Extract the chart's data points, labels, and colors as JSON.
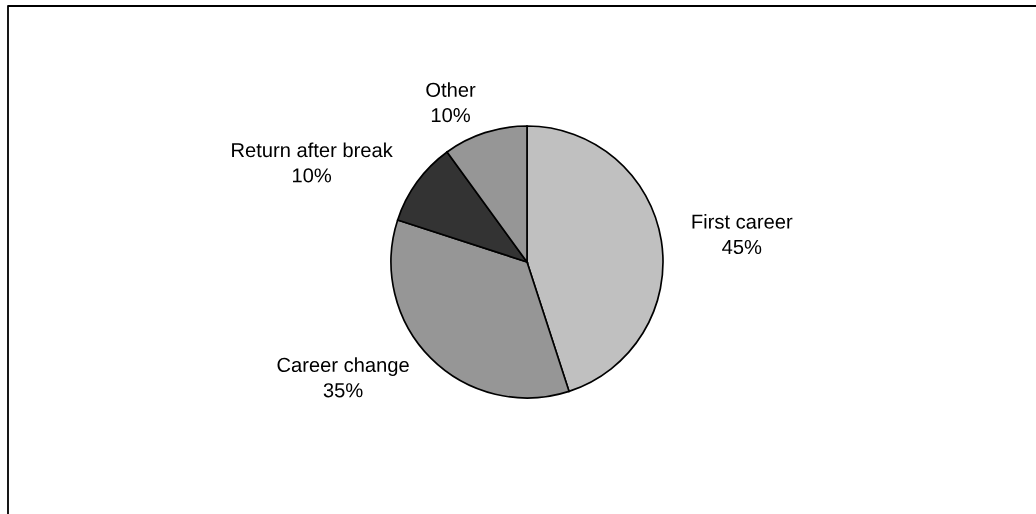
{
  "chart_data": {
    "type": "pie",
    "categories": [
      "First career",
      "Career change",
      "Return after break",
      "Other"
    ],
    "values": [
      45,
      35,
      10,
      10
    ],
    "colors": [
      "#c0c0c0",
      "#969696",
      "#333333",
      "#969696"
    ],
    "value_labels": [
      "45%",
      "35%",
      "10%",
      "10%"
    ]
  }
}
